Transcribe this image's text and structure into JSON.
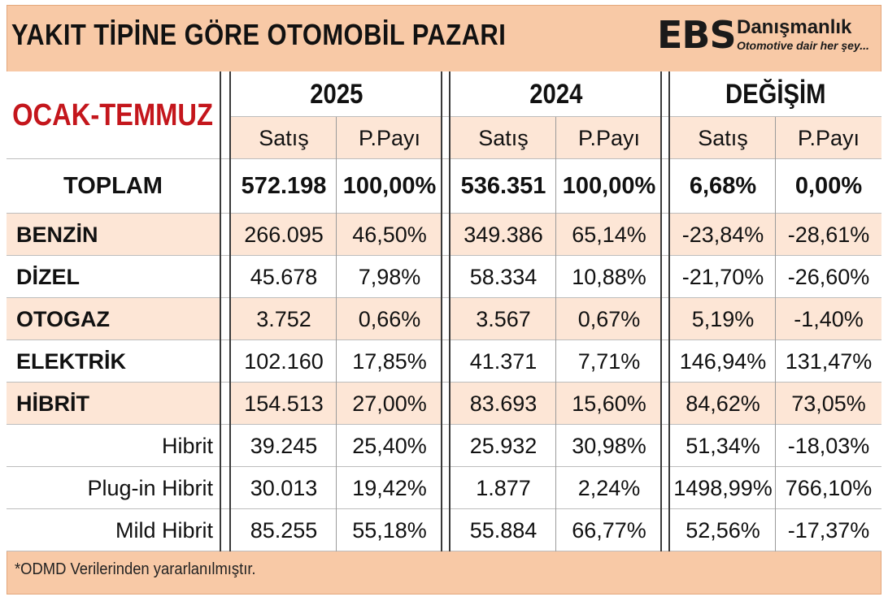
{
  "header": {
    "title": "YAKIT TİPİNE GÖRE OTOMOBİL PAZARI",
    "logo_mark": "EBS",
    "logo_brand": "Danışmanlık",
    "logo_tagline": "Otomotive dair her şey..."
  },
  "period_label": "OCAK-TEMMUZ",
  "groups": [
    {
      "label": "2025",
      "cols": [
        "Satış",
        "P.Payı"
      ]
    },
    {
      "label": "2024",
      "cols": [
        "Satış",
        "P.Payı"
      ]
    },
    {
      "label": "DEĞİŞİM",
      "cols": [
        "Satış",
        "P.Payı"
      ]
    }
  ],
  "rows": [
    {
      "label": "TOPLAM",
      "values": [
        "572.198",
        "100,00%",
        "536.351",
        "100,00%",
        "6,68%",
        "0,00%"
      ]
    },
    {
      "label": "BENZİN",
      "values": [
        "266.095",
        "46,50%",
        "349.386",
        "65,14%",
        "-23,84%",
        "-28,61%"
      ]
    },
    {
      "label": "DİZEL",
      "values": [
        "45.678",
        "7,98%",
        "58.334",
        "10,88%",
        "-21,70%",
        "-26,60%"
      ]
    },
    {
      "label": "OTOGAZ",
      "values": [
        "3.752",
        "0,66%",
        "3.567",
        "0,67%",
        "5,19%",
        "-1,40%"
      ]
    },
    {
      "label": "ELEKTRİK",
      "values": [
        "102.160",
        "17,85%",
        "41.371",
        "7,71%",
        "146,94%",
        "131,47%"
      ]
    },
    {
      "label": "HİBRİT",
      "values": [
        "154.513",
        "27,00%",
        "83.693",
        "15,60%",
        "84,62%",
        "73,05%"
      ]
    },
    {
      "label": "Hibrit",
      "values": [
        "39.245",
        "25,40%",
        "25.932",
        "30,98%",
        "51,34%",
        "-18,03%"
      ]
    },
    {
      "label": "Plug-in Hibrit",
      "values": [
        "30.013",
        "19,42%",
        "1.877",
        "2,24%",
        "1498,99%",
        "766,10%"
      ]
    },
    {
      "label": "Mild Hibrit",
      "values": [
        "85.255",
        "55,18%",
        "55.884",
        "66,77%",
        "52,56%",
        "-17,37%"
      ]
    }
  ],
  "footnote": "*ODMD Verilerinden yararlanılmıştır.",
  "colors": {
    "frame": "#f8c9a6",
    "band": "#fde6d6",
    "period_red": "#c4161c",
    "separator": "#3a3a3a"
  }
}
